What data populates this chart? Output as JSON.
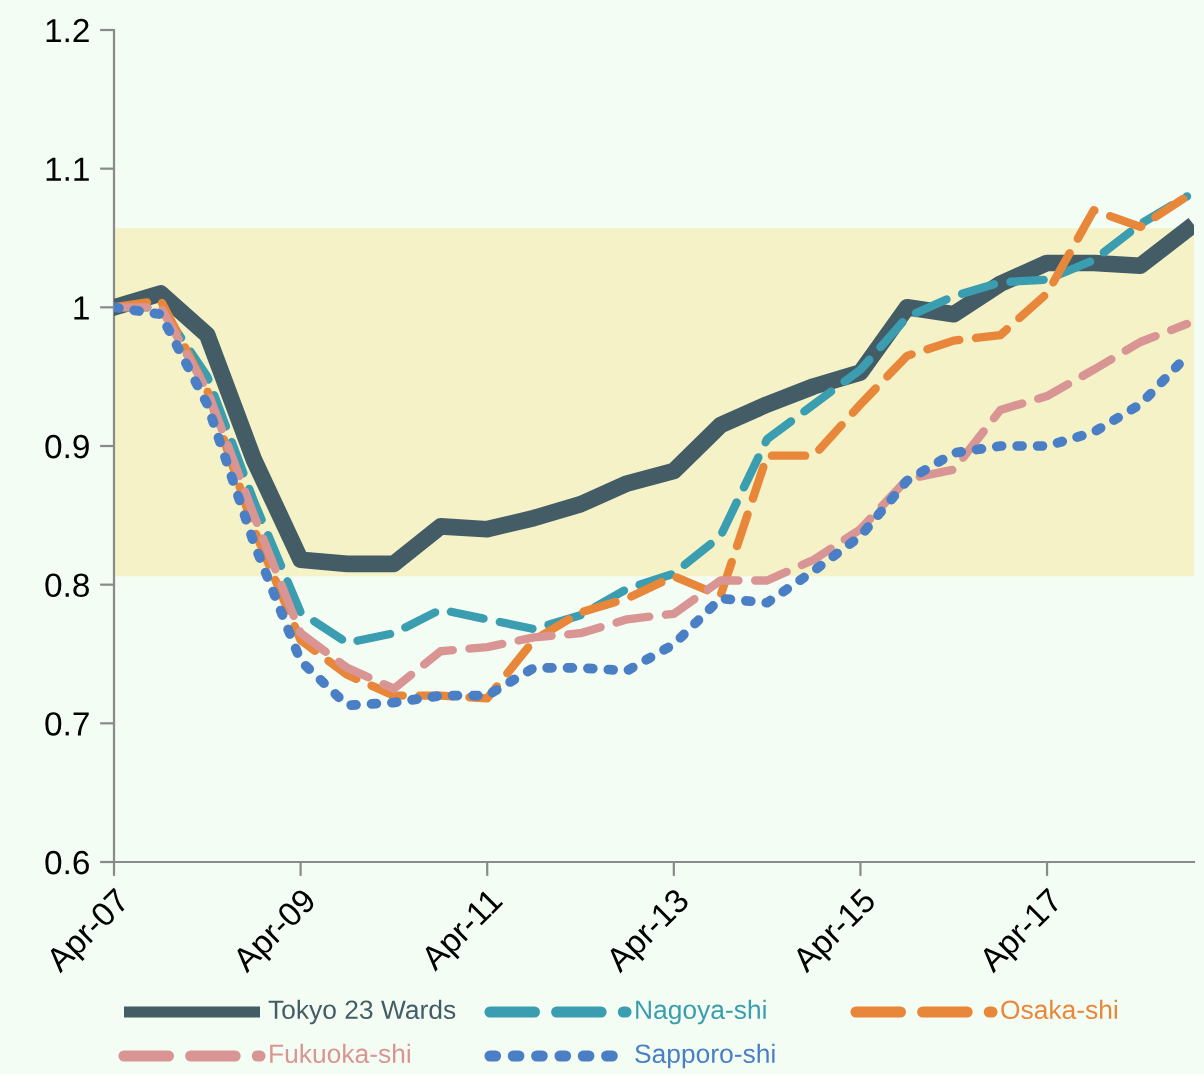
{
  "chart_data": {
    "type": "line",
    "categories": [
      "Apr-07",
      null,
      null,
      null,
      "Apr-09",
      null,
      null,
      null,
      "Apr-11",
      null,
      null,
      null,
      "Apr-13",
      null,
      null,
      null,
      "Apr-15",
      null,
      null,
      null,
      "Apr-17",
      null,
      null,
      null
    ],
    "series": [
      {
        "name": "Tokyo 23 Wards",
        "color": "#435c66",
        "line_style": "solid",
        "values": [
          1.0,
          1.01,
          0.98,
          0.89,
          0.818,
          0.815,
          0.815,
          0.842,
          0.84,
          0.848,
          0.858,
          0.873,
          0.882,
          0.915,
          0.93,
          0.943,
          0.953,
          1.0,
          0.995,
          1.017,
          1.032,
          1.032,
          1.03,
          1.056
        ]
      },
      {
        "name": "Nagoya-shi",
        "color": "#3a9db0",
        "line_style": "dashed",
        "values": [
          1.0,
          1.0,
          0.95,
          0.86,
          0.78,
          0.758,
          0.765,
          0.782,
          0.775,
          0.768,
          0.778,
          0.797,
          0.808,
          0.835,
          0.905,
          0.93,
          0.955,
          0.993,
          1.008,
          1.018,
          1.02,
          1.034,
          1.06,
          1.08
        ]
      },
      {
        "name": "Osaka-shi",
        "color": "#e8863a",
        "line_style": "dashed",
        "values": [
          1.0,
          1.005,
          0.94,
          0.84,
          0.76,
          0.735,
          0.72,
          0.72,
          0.718,
          0.76,
          0.78,
          0.79,
          0.806,
          0.792,
          0.893,
          0.893,
          0.93,
          0.965,
          0.976,
          0.98,
          1.01,
          1.07,
          1.058,
          1.08
        ]
      },
      {
        "name": "Fukuoka-shi",
        "color": "#d99494",
        "line_style": "dashed",
        "values": [
          1.0,
          1.0,
          0.94,
          0.85,
          0.765,
          0.74,
          0.725,
          0.752,
          0.755,
          0.762,
          0.765,
          0.775,
          0.779,
          0.803,
          0.803,
          0.818,
          0.84,
          0.876,
          0.883,
          0.926,
          0.936,
          0.955,
          0.975,
          0.988
        ]
      },
      {
        "name": "Sapporo-shi",
        "color": "#4a7fc6",
        "line_style": "dotted",
        "values": [
          1.0,
          0.995,
          0.93,
          0.83,
          0.745,
          0.713,
          0.715,
          0.72,
          0.72,
          0.74,
          0.74,
          0.738,
          0.757,
          0.79,
          0.787,
          0.81,
          0.835,
          0.875,
          0.895,
          0.9,
          0.9,
          0.91,
          0.93,
          0.965
        ]
      }
    ],
    "ylim": [
      0.6,
      1.2
    ],
    "yticks": [
      0.6,
      0.7,
      0.8,
      0.9,
      1,
      1.1,
      1.2
    ],
    "bands": [
      {
        "axis": "y",
        "from": 0.806,
        "to": 1.057,
        "color": "#f5f2c8"
      }
    ],
    "grid": false,
    "legend": "bottom"
  }
}
